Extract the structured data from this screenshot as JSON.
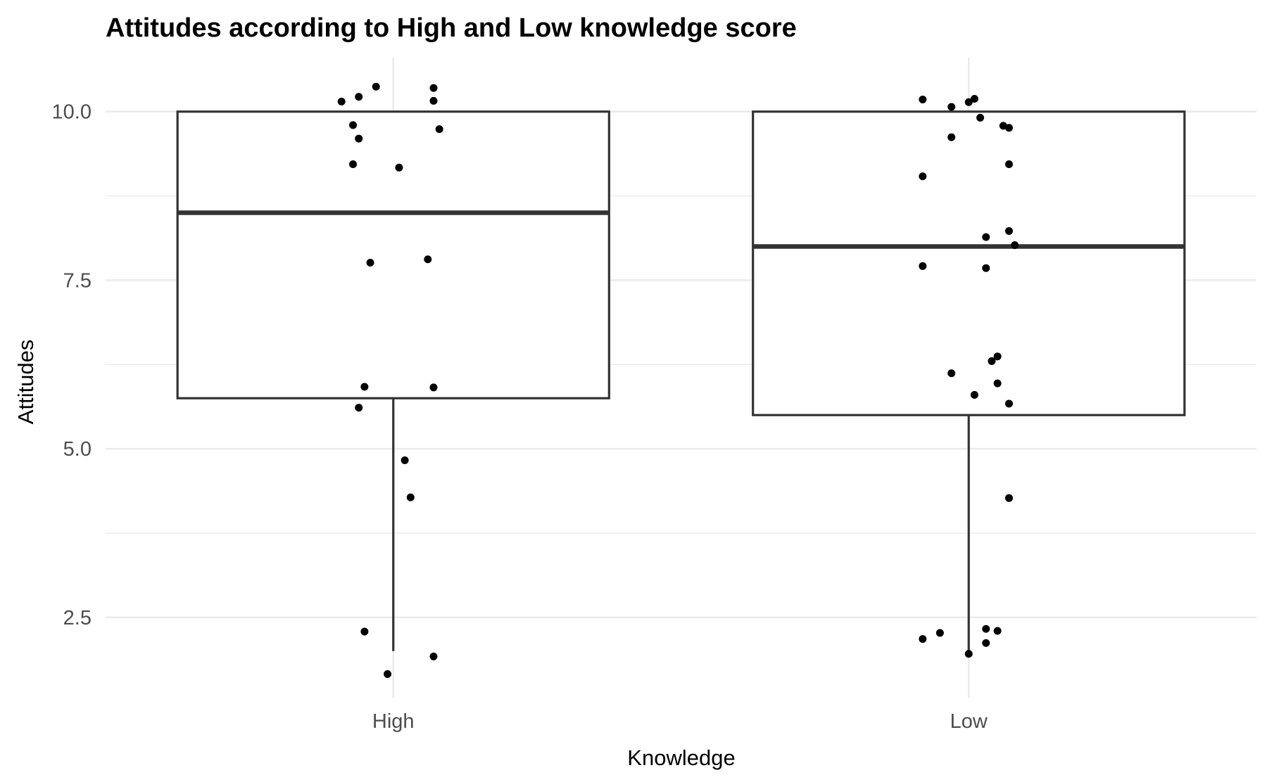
{
  "chart_data": {
    "type": "boxplot",
    "title": "Attitudes according to High and Low knowledge score",
    "xlabel": "Knowledge",
    "ylabel": "Attitudes",
    "categories": [
      "High",
      "Low"
    ],
    "ylim": [
      1.3,
      10.8
    ],
    "yticks": [
      2.5,
      5.0,
      7.5,
      10.0
    ],
    "ytick_labels": [
      "2.5",
      "5.0",
      "7.5",
      "10.0"
    ],
    "grid": true,
    "boxes": [
      {
        "category": "High",
        "lower_whisker": 2.0,
        "q1": 5.75,
        "median": 8.5,
        "q3": 10.0,
        "upper_whisker": 10.0
      },
      {
        "category": "Low",
        "lower_whisker": 2.0,
        "q1": 5.5,
        "median": 8.0,
        "q3": 10.0,
        "upper_whisker": 10.0
      }
    ],
    "points": [
      {
        "category": "High",
        "jitter": -0.09,
        "y": 10.15
      },
      {
        "category": "High",
        "jitter": -0.06,
        "y": 10.22
      },
      {
        "category": "High",
        "jitter": -0.03,
        "y": 10.37
      },
      {
        "category": "High",
        "jitter": 0.07,
        "y": 10.16
      },
      {
        "category": "High",
        "jitter": 0.07,
        "y": 10.35
      },
      {
        "category": "High",
        "jitter": -0.07,
        "y": 9.8
      },
      {
        "category": "High",
        "jitter": -0.06,
        "y": 9.6
      },
      {
        "category": "High",
        "jitter": 0.08,
        "y": 9.74
      },
      {
        "category": "High",
        "jitter": -0.07,
        "y": 9.22
      },
      {
        "category": "High",
        "jitter": 0.01,
        "y": 9.17
      },
      {
        "category": "High",
        "jitter": -0.04,
        "y": 7.76
      },
      {
        "category": "High",
        "jitter": 0.06,
        "y": 7.81
      },
      {
        "category": "High",
        "jitter": -0.05,
        "y": 5.92
      },
      {
        "category": "High",
        "jitter": 0.07,
        "y": 5.91
      },
      {
        "category": "High",
        "jitter": -0.06,
        "y": 5.61
      },
      {
        "category": "High",
        "jitter": 0.02,
        "y": 4.83
      },
      {
        "category": "High",
        "jitter": 0.03,
        "y": 4.28
      },
      {
        "category": "High",
        "jitter": -0.05,
        "y": 2.29
      },
      {
        "category": "High",
        "jitter": 0.07,
        "y": 1.92
      },
      {
        "category": "High",
        "jitter": -0.01,
        "y": 1.66
      },
      {
        "category": "Low",
        "jitter": -0.08,
        "y": 10.18
      },
      {
        "category": "Low",
        "jitter": -0.03,
        "y": 10.07
      },
      {
        "category": "Low",
        "jitter": 0.0,
        "y": 10.14
      },
      {
        "category": "Low",
        "jitter": 0.01,
        "y": 10.19
      },
      {
        "category": "Low",
        "jitter": 0.02,
        "y": 9.91
      },
      {
        "category": "Low",
        "jitter": 0.06,
        "y": 9.79
      },
      {
        "category": "Low",
        "jitter": 0.07,
        "y": 9.76
      },
      {
        "category": "Low",
        "jitter": -0.03,
        "y": 9.62
      },
      {
        "category": "Low",
        "jitter": 0.07,
        "y": 9.22
      },
      {
        "category": "Low",
        "jitter": -0.08,
        "y": 9.04
      },
      {
        "category": "Low",
        "jitter": 0.07,
        "y": 8.23
      },
      {
        "category": "Low",
        "jitter": 0.03,
        "y": 8.14
      },
      {
        "category": "Low",
        "jitter": 0.08,
        "y": 8.02
      },
      {
        "category": "Low",
        "jitter": -0.08,
        "y": 7.71
      },
      {
        "category": "Low",
        "jitter": 0.03,
        "y": 7.68
      },
      {
        "category": "Low",
        "jitter": 0.05,
        "y": 6.37
      },
      {
        "category": "Low",
        "jitter": 0.04,
        "y": 6.3
      },
      {
        "category": "Low",
        "jitter": -0.03,
        "y": 6.12
      },
      {
        "category": "Low",
        "jitter": 0.05,
        "y": 5.97
      },
      {
        "category": "Low",
        "jitter": 0.01,
        "y": 5.8
      },
      {
        "category": "Low",
        "jitter": 0.07,
        "y": 5.67
      },
      {
        "category": "Low",
        "jitter": 0.07,
        "y": 4.27
      },
      {
        "category": "Low",
        "jitter": 0.03,
        "y": 2.33
      },
      {
        "category": "Low",
        "jitter": 0.05,
        "y": 2.3
      },
      {
        "category": "Low",
        "jitter": -0.05,
        "y": 2.27
      },
      {
        "category": "Low",
        "jitter": -0.08,
        "y": 2.18
      },
      {
        "category": "Low",
        "jitter": 0.03,
        "y": 2.12
      },
      {
        "category": "Low",
        "jitter": 0.0,
        "y": 1.96
      }
    ]
  }
}
